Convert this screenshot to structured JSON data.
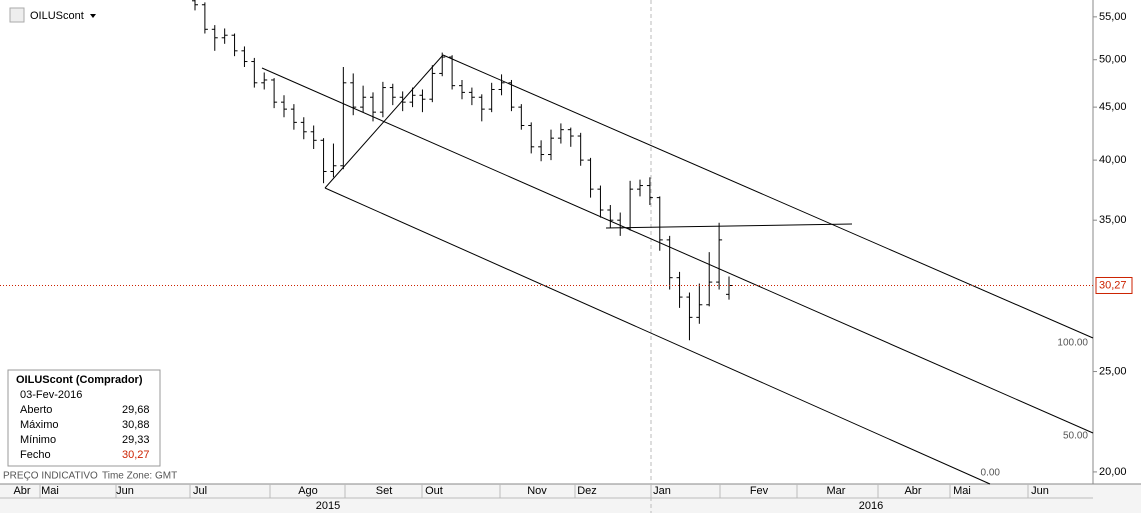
{
  "chart_data": {
    "type": "ohlc",
    "symbol": "OILUScont",
    "log_scale": true,
    "grid": false,
    "color": "#000000",
    "last_color": "#cc2200",
    "ylim": [
      19.47,
      57.1
    ],
    "yticks": [
      {
        "value": 20,
        "label": "20,00"
      },
      {
        "value": 25,
        "label": "25,00"
      },
      {
        "value": 35,
        "label": "35,00"
      },
      {
        "value": 40,
        "label": "40,00"
      },
      {
        "value": 45,
        "label": "45,00"
      },
      {
        "value": 50,
        "label": "50,00"
      },
      {
        "value": 55,
        "label": "55,00"
      }
    ],
    "last_price_label": "30,27",
    "months": [
      "Abr",
      "Mai",
      "Jun",
      "Jul",
      "Ago",
      "Set",
      "Out",
      "Nov",
      "Dez",
      "Jan",
      "Fev",
      "Mar",
      "Abr",
      "Mai",
      "Jun"
    ],
    "years": [
      "2015",
      "2016"
    ],
    "channel_labels": [
      "100.00",
      "50.00",
      "0.00"
    ],
    "footer": "PREÇO INDICATIVO",
    "timezone": "Time Zone: GMT",
    "series": {
      "open": [
        57.0,
        56.5,
        53.5,
        52.5,
        52.8,
        51.0,
        49.8,
        47.5,
        47.8,
        45.5,
        44.8,
        43.5,
        42.6,
        41.8,
        39.0,
        39.5,
        47.5,
        45.0,
        46.0,
        44.5,
        47.0,
        46.0,
        45.5,
        46.2,
        45.8,
        48.5,
        50.3,
        47.2,
        46.5,
        46.0,
        44.8,
        46.8,
        47.5,
        45.0,
        43.2,
        41.2,
        40.5,
        42.0,
        42.8,
        42.2,
        40.0,
        37.5,
        35.8,
        35.0,
        34.4,
        37.5,
        37.8,
        36.8,
        33.5,
        30.8,
        29.5,
        28.2,
        29.0,
        30.5,
        29.68
      ],
      "high": [
        57.5,
        56.8,
        54.0,
        53.6,
        53.0,
        51.5,
        50.2,
        48.6,
        48.0,
        46.2,
        45.3,
        44.0,
        43.2,
        42.0,
        41.5,
        49.2,
        48.5,
        47.2,
        46.5,
        47.6,
        47.4,
        46.6,
        47.0,
        46.8,
        49.4,
        50.8,
        50.5,
        47.8,
        47.0,
        46.3,
        47.5,
        48.4,
        47.8,
        45.3,
        43.5,
        41.8,
        42.8,
        43.4,
        43.0,
        42.5,
        40.2,
        37.8,
        36.2,
        35.6,
        38.2,
        38.3,
        38.5,
        36.9,
        33.8,
        31.2,
        29.8,
        30.4,
        32.6,
        34.8,
        30.88
      ],
      "low": [
        55.8,
        53.0,
        51.0,
        51.8,
        50.4,
        49.2,
        47.0,
        46.8,
        44.9,
        44.0,
        42.8,
        41.9,
        41.0,
        38.0,
        38.5,
        39.2,
        44.2,
        44.5,
        43.6,
        44.0,
        45.2,
        44.6,
        45.0,
        44.5,
        45.5,
        48.2,
        46.8,
        45.8,
        45.2,
        43.6,
        44.5,
        46.2,
        44.6,
        42.8,
        40.6,
        39.9,
        40.0,
        41.5,
        41.2,
        39.5,
        36.8,
        35.2,
        34.4,
        33.8,
        34.2,
        36.9,
        36.2,
        32.7,
        30.0,
        28.8,
        26.8,
        27.8,
        28.9,
        30.0,
        29.33
      ],
      "close": [
        56.5,
        53.5,
        52.5,
        52.8,
        51.0,
        49.8,
        47.5,
        47.8,
        45.5,
        44.8,
        43.5,
        42.6,
        41.8,
        39.0,
        39.5,
        47.5,
        45.0,
        46.0,
        44.5,
        47.0,
        46.0,
        45.5,
        46.2,
        45.8,
        48.5,
        50.3,
        47.2,
        46.5,
        46.0,
        44.8,
        46.8,
        47.5,
        45.0,
        43.2,
        41.2,
        40.5,
        42.0,
        42.8,
        42.2,
        40.0,
        37.5,
        35.8,
        35.0,
        34.4,
        37.5,
        37.8,
        36.8,
        33.5,
        30.8,
        29.5,
        28.2,
        29.0,
        30.5,
        33.5,
        30.27
      ]
    }
  },
  "info_box": {
    "title": "OILUScont (Comprador)",
    "date": "03-Fev-2016",
    "rows": [
      [
        "Aberto",
        "29,68"
      ],
      [
        "Máximo",
        "30,88"
      ],
      [
        "Mínimo",
        "29,33"
      ],
      [
        "Fecho",
        "30,27"
      ]
    ]
  }
}
